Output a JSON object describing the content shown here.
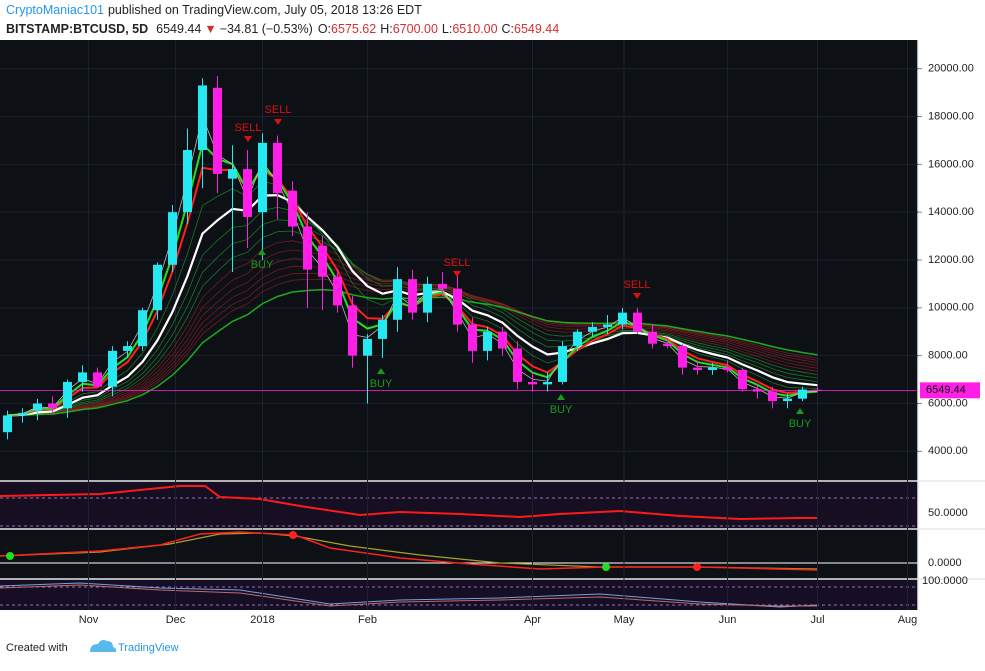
{
  "header": {
    "author": "CryptoManiac101",
    "published": "published on TradingView.com, July 05, 2018 13:26 EDT",
    "symbol": "BITSTAMP:BTCUSD, 5D",
    "price": "6549.44",
    "arrow": "▼",
    "change": "−34.81 (−0.53%)",
    "o_label": "O:",
    "o_value": "6575.62",
    "h_label": "H:",
    "h_value": "6700.00",
    "l_label": "L:",
    "l_value": "6510.00",
    "c_label": "C:",
    "c_value": "6549.44"
  },
  "chart_data": {
    "type": "candlestick",
    "up_color": "#26e8f0",
    "down_color": "#ff1ee6",
    "open": [
      4800,
      5500,
      5700,
      6000,
      5800,
      6900,
      7300,
      6700,
      8200,
      8400,
      9900,
      11800,
      14000,
      16600,
      19200,
      15400,
      15800,
      14000,
      16900,
      14900,
      13400,
      12600,
      11300,
      10100,
      8000,
      8700,
      9500,
      11200,
      9800,
      11000,
      10800,
      9300,
      8200,
      9000,
      8300,
      6900,
      6800,
      6900,
      8400,
      9000,
      9200,
      9300,
      9800,
      9000,
      8500,
      8400,
      7500,
      7400,
      7500,
      7400,
      6600,
      6500,
      6100,
      6200,
      6575.62
    ],
    "high": [
      5700,
      5800,
      6200,
      6300,
      7000,
      7600,
      7500,
      8400,
      8600,
      10000,
      11900,
      14300,
      17500,
      19600,
      19700,
      16800,
      16600,
      17300,
      17200,
      15300,
      14000,
      13000,
      11600,
      10500,
      8900,
      9700,
      11700,
      11600,
      11300,
      11500,
      11400,
      9600,
      9200,
      9200,
      8600,
      7300,
      7300,
      8600,
      9100,
      9400,
      9700,
      10000,
      10000,
      9300,
      8700,
      8500,
      7800,
      7700,
      7800,
      7500,
      6800,
      6700,
      6400,
      6700,
      6700
    ],
    "low": [
      4500,
      5200,
      5300,
      5600,
      5400,
      6500,
      6700,
      6300,
      7900,
      8200,
      9500,
      11500,
      13500,
      15000,
      14800,
      11500,
      12500,
      12000,
      13700,
      13000,
      10000,
      9900,
      9800,
      7500,
      6000,
      7900,
      9000,
      9500,
      9400,
      10500,
      9000,
      7700,
      7800,
      8000,
      6600,
      6500,
      6500,
      6800,
      8200,
      8800,
      8900,
      9100,
      8900,
      8300,
      8300,
      7200,
      7200,
      7200,
      7300,
      6500,
      6200,
      5800,
      5800,
      6100,
      6510
    ],
    "close": [
      5500,
      5600,
      6000,
      5800,
      6900,
      7300,
      6700,
      8200,
      8400,
      9900,
      11800,
      14000,
      16600,
      19300,
      15600,
      15800,
      13800,
      16900,
      14800,
      13400,
      11600,
      11300,
      10100,
      8000,
      8700,
      9500,
      11200,
      9800,
      11000,
      10800,
      9300,
      8200,
      9000,
      8300,
      6900,
      6800,
      6900,
      8400,
      9000,
      9200,
      9300,
      9800,
      9000,
      8500,
      8400,
      7500,
      7400,
      7500,
      7400,
      6600,
      6500,
      6100,
      6200,
      6584.25,
      6549.44
    ],
    "ylim": [
      2800,
      21200
    ],
    "yticks": [
      {
        "value": 4000,
        "label": "4000.00"
      },
      {
        "value": 6000,
        "label": "6000.00"
      },
      {
        "value": 8000,
        "label": "8000.00"
      },
      {
        "value": 10000,
        "label": "10000.00"
      },
      {
        "value": 12000,
        "label": "12000.00"
      },
      {
        "value": 14000,
        "label": "14000.00"
      },
      {
        "value": 16000,
        "label": "16000.00"
      },
      {
        "value": 18000,
        "label": "18000.00"
      },
      {
        "value": 20000,
        "label": "20000.00"
      }
    ],
    "xlim": [
      -0.5,
      60.7
    ],
    "xticks": [
      {
        "value": 5.4,
        "label": "Nov"
      },
      {
        "value": 11.2,
        "label": "Dec"
      },
      {
        "value": 17.0,
        "label": "2018"
      },
      {
        "value": 24.0,
        "label": "Feb"
      },
      {
        "value": 35.0,
        "label": "Apr"
      },
      {
        "value": 41.1,
        "label": "May"
      },
      {
        "value": 48.0,
        "label": "Jun"
      },
      {
        "value": 54.0,
        "label": "Jul"
      },
      {
        "value": 60.0,
        "label": "Aug"
      }
    ],
    "grid": true,
    "annotations": [
      "SELL",
      "SELL",
      "SELL",
      "SELL",
      "BUY",
      "BUY",
      "BUY",
      "BUY"
    ]
  },
  "indicators": {
    "rsi_tick": "50.0000",
    "macd_tick": "0.0000",
    "third_tick": "100.0000"
  },
  "footer": {
    "created": "Created with",
    "brand": "TradingView"
  }
}
